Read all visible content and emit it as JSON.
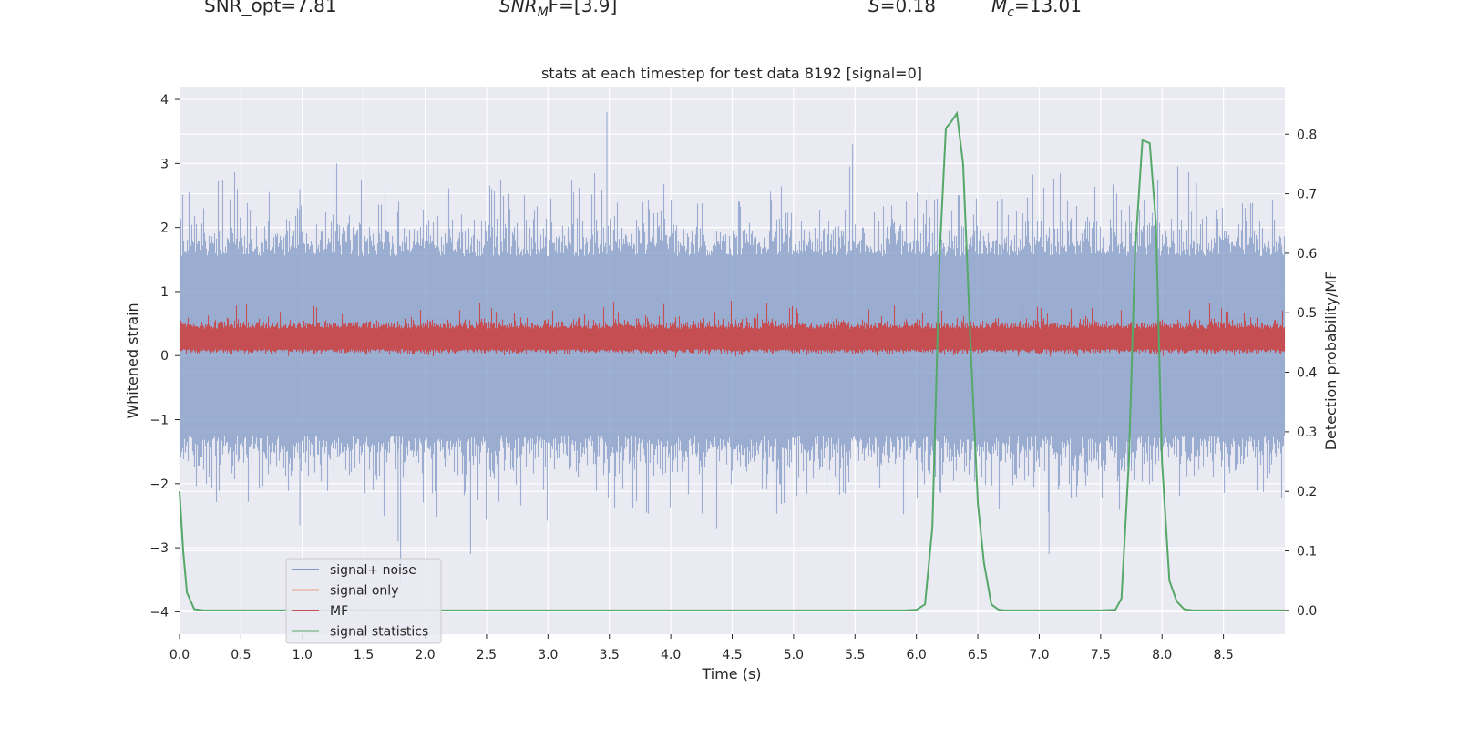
{
  "header": {
    "snr_opt": "SNR_opt=7.81",
    "snr_mf_var": "SNR",
    "snr_mf_sub": "M",
    "snr_mf_rest": "F=[3.9]",
    "s_var": "S",
    "s_rest": "=0.18",
    "mc_var": "M",
    "mc_sub": "c",
    "mc_rest": "=13.01"
  },
  "colors": {
    "signal_noise": "#7f98c6",
    "signal_only": "#e8a081",
    "mf": "#c44e52",
    "stats": "#55a868",
    "plot_bg": "#eaeaf2",
    "grid": "#ffffff"
  },
  "chart_data": {
    "type": "line",
    "title": "stats at each timestep for test data 8192 [signal=0]",
    "xlabel": "Time (s)",
    "ylabel": "Whitened strain",
    "ylabel_right": "Detection probability/MF",
    "xlim": [
      0.0,
      9.0
    ],
    "ylim": [
      -4.35,
      4.2
    ],
    "ylim_right": [
      -0.04,
      0.88
    ],
    "xticks": [
      "0.0",
      "0.5",
      "1.0",
      "1.5",
      "2.0",
      "2.5",
      "3.0",
      "3.5",
      "4.0",
      "4.5",
      "5.0",
      "5.5",
      "6.0",
      "6.5",
      "7.0",
      "7.5",
      "8.0",
      "8.5"
    ],
    "yticks": [
      "4",
      "3",
      "2",
      "1",
      "0",
      "−1",
      "−2",
      "−3",
      "−4"
    ],
    "yticks_right": [
      "0.8",
      "0.7",
      "0.6",
      "0.5",
      "0.4",
      "0.3",
      "0.2",
      "0.1",
      "0.0"
    ],
    "legend": {
      "position": "lower-left",
      "entries": [
        "signal+ noise",
        "signal only",
        "MF",
        "signal statistics"
      ]
    },
    "series": [
      {
        "name": "signal+ noise",
        "axis": "left",
        "values_description": "noise"
      },
      {
        "name": "signal only",
        "axis": "left"
      },
      {
        "name": "MF",
        "axis": "left"
      },
      {
        "name": "signal statistics",
        "axis": "right",
        "x": [
          0.0,
          0.03,
          0.06,
          0.12,
          0.2,
          0.3,
          5.9,
          6.0,
          6.07,
          6.13,
          6.19,
          6.24,
          6.28,
          6.33,
          6.38,
          6.44,
          6.5,
          6.55,
          6.61,
          6.67,
          6.72,
          6.8,
          7.5,
          7.62,
          7.67,
          7.73,
          7.78,
          7.84,
          7.9,
          7.95,
          8.0,
          8.06,
          8.12,
          8.18,
          8.25,
          8.3,
          9.0
        ],
        "values": [
          0.2,
          0.1,
          0.03,
          0.002,
          0.0,
          0.0,
          0.0,
          0.001,
          0.01,
          0.14,
          0.6,
          0.81,
          0.82,
          0.835,
          0.75,
          0.45,
          0.18,
          0.08,
          0.01,
          0.001,
          0.0,
          0.0,
          0.0,
          0.001,
          0.02,
          0.25,
          0.6,
          0.79,
          0.785,
          0.65,
          0.25,
          0.05,
          0.015,
          0.002,
          0.0,
          0.0,
          0.0
        ]
      }
    ]
  }
}
